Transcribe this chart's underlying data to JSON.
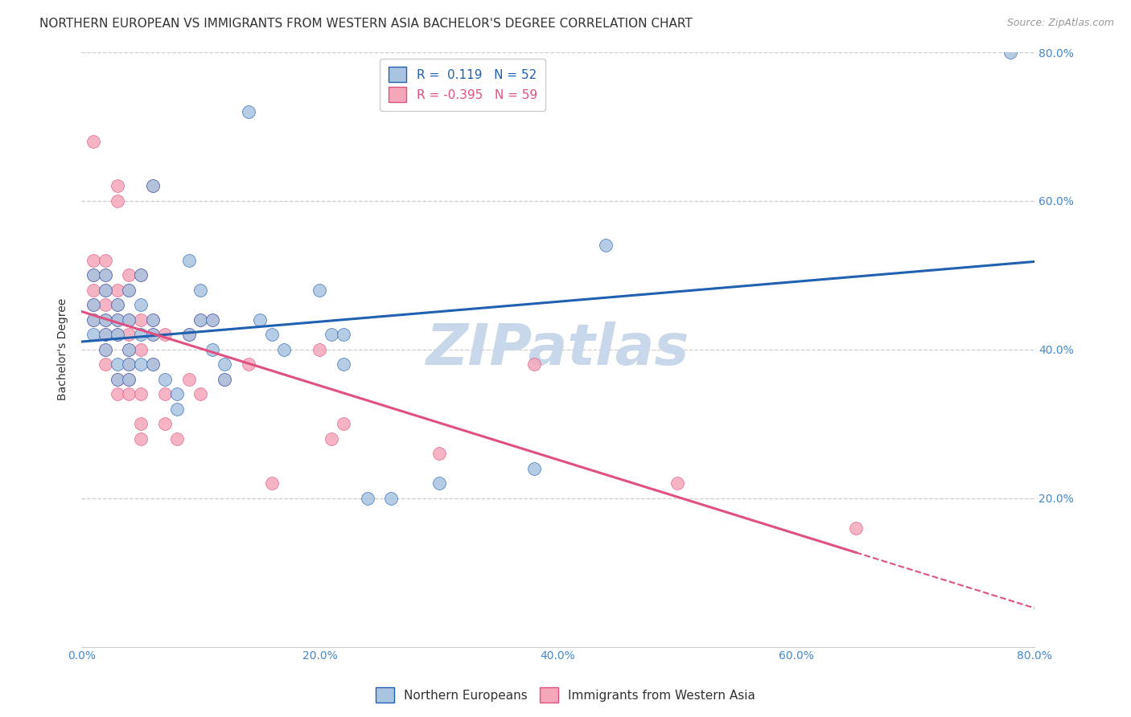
{
  "title": "NORTHERN EUROPEAN VS IMMIGRANTS FROM WESTERN ASIA BACHELOR'S DEGREE CORRELATION CHART",
  "source": "Source: ZipAtlas.com",
  "ylabel": "Bachelor's Degree",
  "watermark": "ZIPatlas",
  "xlim": [
    0.0,
    0.8
  ],
  "ylim": [
    0.0,
    0.8
  ],
  "blue_R": 0.119,
  "blue_N": 52,
  "pink_R": -0.395,
  "pink_N": 59,
  "blue_color": "#a8c4e0",
  "pink_color": "#f4a7b9",
  "blue_line_color": "#2060b0",
  "pink_line_color": "#e05080",
  "blue_scatter": [
    [
      0.01,
      0.42
    ],
    [
      0.01,
      0.46
    ],
    [
      0.01,
      0.5
    ],
    [
      0.01,
      0.44
    ],
    [
      0.02,
      0.5
    ],
    [
      0.02,
      0.44
    ],
    [
      0.02,
      0.48
    ],
    [
      0.02,
      0.42
    ],
    [
      0.02,
      0.4
    ],
    [
      0.03,
      0.46
    ],
    [
      0.03,
      0.44
    ],
    [
      0.03,
      0.42
    ],
    [
      0.03,
      0.38
    ],
    [
      0.03,
      0.36
    ],
    [
      0.04,
      0.48
    ],
    [
      0.04,
      0.44
    ],
    [
      0.04,
      0.4
    ],
    [
      0.04,
      0.38
    ],
    [
      0.04,
      0.36
    ],
    [
      0.05,
      0.5
    ],
    [
      0.05,
      0.46
    ],
    [
      0.05,
      0.42
    ],
    [
      0.05,
      0.38
    ],
    [
      0.06,
      0.62
    ],
    [
      0.06,
      0.44
    ],
    [
      0.06,
      0.42
    ],
    [
      0.06,
      0.38
    ],
    [
      0.07,
      0.36
    ],
    [
      0.08,
      0.34
    ],
    [
      0.08,
      0.32
    ],
    [
      0.09,
      0.52
    ],
    [
      0.09,
      0.42
    ],
    [
      0.1,
      0.48
    ],
    [
      0.1,
      0.44
    ],
    [
      0.11,
      0.44
    ],
    [
      0.11,
      0.4
    ],
    [
      0.12,
      0.38
    ],
    [
      0.12,
      0.36
    ],
    [
      0.14,
      0.72
    ],
    [
      0.15,
      0.44
    ],
    [
      0.16,
      0.42
    ],
    [
      0.17,
      0.4
    ],
    [
      0.2,
      0.48
    ],
    [
      0.21,
      0.42
    ],
    [
      0.22,
      0.42
    ],
    [
      0.22,
      0.38
    ],
    [
      0.24,
      0.2
    ],
    [
      0.26,
      0.2
    ],
    [
      0.3,
      0.22
    ],
    [
      0.38,
      0.24
    ],
    [
      0.44,
      0.54
    ],
    [
      0.78,
      0.8
    ]
  ],
  "pink_scatter": [
    [
      0.01,
      0.68
    ],
    [
      0.01,
      0.52
    ],
    [
      0.01,
      0.5
    ],
    [
      0.01,
      0.48
    ],
    [
      0.01,
      0.46
    ],
    [
      0.01,
      0.44
    ],
    [
      0.02,
      0.52
    ],
    [
      0.02,
      0.5
    ],
    [
      0.02,
      0.48
    ],
    [
      0.02,
      0.46
    ],
    [
      0.02,
      0.44
    ],
    [
      0.02,
      0.42
    ],
    [
      0.02,
      0.4
    ],
    [
      0.02,
      0.38
    ],
    [
      0.03,
      0.62
    ],
    [
      0.03,
      0.6
    ],
    [
      0.03,
      0.48
    ],
    [
      0.03,
      0.46
    ],
    [
      0.03,
      0.44
    ],
    [
      0.03,
      0.42
    ],
    [
      0.03,
      0.36
    ],
    [
      0.03,
      0.34
    ],
    [
      0.04,
      0.5
    ],
    [
      0.04,
      0.48
    ],
    [
      0.04,
      0.44
    ],
    [
      0.04,
      0.42
    ],
    [
      0.04,
      0.4
    ],
    [
      0.04,
      0.38
    ],
    [
      0.04,
      0.36
    ],
    [
      0.04,
      0.34
    ],
    [
      0.05,
      0.5
    ],
    [
      0.05,
      0.44
    ],
    [
      0.05,
      0.4
    ],
    [
      0.05,
      0.34
    ],
    [
      0.05,
      0.3
    ],
    [
      0.05,
      0.28
    ],
    [
      0.06,
      0.62
    ],
    [
      0.06,
      0.44
    ],
    [
      0.06,
      0.42
    ],
    [
      0.06,
      0.38
    ],
    [
      0.07,
      0.42
    ],
    [
      0.07,
      0.34
    ],
    [
      0.07,
      0.3
    ],
    [
      0.08,
      0.28
    ],
    [
      0.09,
      0.42
    ],
    [
      0.09,
      0.36
    ],
    [
      0.1,
      0.44
    ],
    [
      0.1,
      0.34
    ],
    [
      0.11,
      0.44
    ],
    [
      0.12,
      0.36
    ],
    [
      0.14,
      0.38
    ],
    [
      0.16,
      0.22
    ],
    [
      0.2,
      0.4
    ],
    [
      0.21,
      0.28
    ],
    [
      0.22,
      0.3
    ],
    [
      0.3,
      0.26
    ],
    [
      0.38,
      0.38
    ],
    [
      0.5,
      0.22
    ],
    [
      0.65,
      0.16
    ]
  ],
  "title_fontsize": 11,
  "source_fontsize": 9,
  "axis_label_fontsize": 10,
  "tick_fontsize": 10,
  "legend_fontsize": 11,
  "watermark_color": "#c8d8ea",
  "watermark_fontsize": 52,
  "grid_color": "#cccccc",
  "tick_color": "#4488cc"
}
